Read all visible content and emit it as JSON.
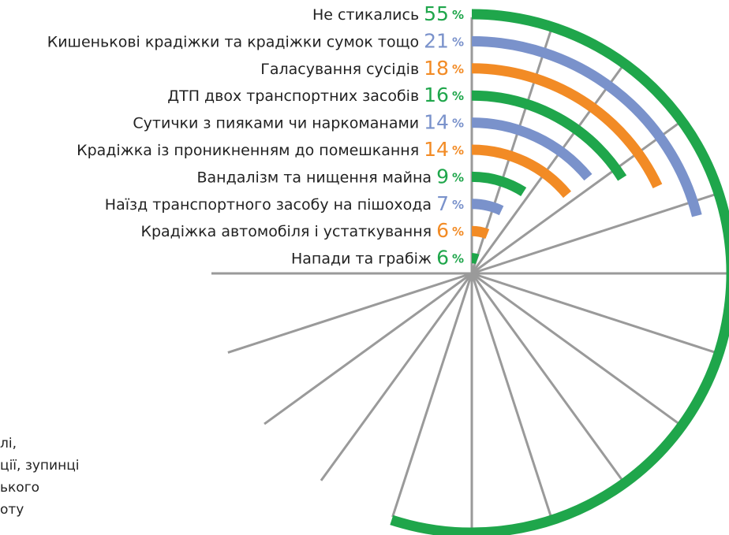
{
  "chart_data": {
    "type": "radial_bar",
    "categories": [
      "Не стикались",
      "Кишенькові крадіжки та крадіжки сумок тощо",
      "Галасування сусідів",
      "ДТП двох транспортних засобів",
      "Сутички з пияками чи наркоманами",
      "Крадіжка із проникненням до помешкання",
      "Вандалізм та нищення майна",
      "Наїзд транспортного засобу на пішохода",
      "Крадіжка автомобіля і устаткування",
      "Напади та грабіж"
    ],
    "values": [
      55,
      21,
      18,
      16,
      14,
      14,
      9,
      7,
      6,
      6
    ],
    "colors": [
      "#1fa64b",
      "#7a92cb",
      "#f28b25",
      "#1fa64b",
      "#7a92cb",
      "#f28b25",
      "#1fa64b",
      "#7a92cb",
      "#f28b25",
      "#1fa64b"
    ],
    "unit": "%",
    "valuelim": [
      0,
      100
    ]
  },
  "side_text": [
    "лі,",
    "ції, зупинці",
    "ького",
    "оту"
  ]
}
